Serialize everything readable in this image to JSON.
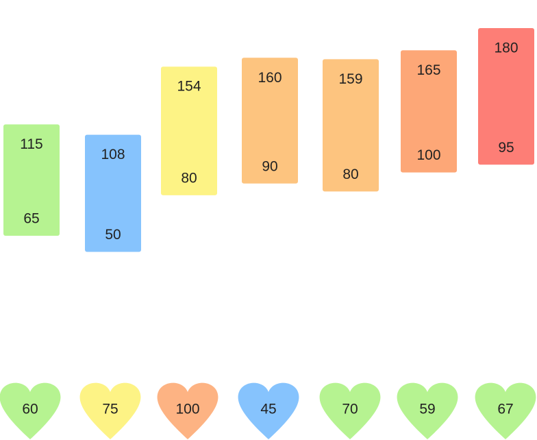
{
  "chart_data": {
    "type": "range-bar",
    "series": [
      {
        "high": 115,
        "low": 65,
        "color": "#b6f391",
        "heart_value": "60",
        "heart_color": "#b6f391"
      },
      {
        "high": 108,
        "low": 50,
        "color": "#86c3fd",
        "heart_value": "75",
        "heart_color": "#fdf385"
      },
      {
        "high": 154,
        "low": 80,
        "color": "#fdf385",
        "heart_value": "100",
        "heart_color": "#fdb383"
      },
      {
        "high": 160,
        "low": 90,
        "color": "#fdc47f",
        "heart_value": "45",
        "heart_color": "#86c3fd"
      },
      {
        "high": 159,
        "low": 80,
        "color": "#fdc47f",
        "heart_value": "70",
        "heart_color": "#b6f391"
      },
      {
        "high": 165,
        "low": 100,
        "color": "#fda777",
        "heart_value": "59",
        "heart_color": "#b6f391"
      },
      {
        "high": 180,
        "low": 95,
        "color": "#fd7e76",
        "heart_value": "67",
        "heart_color": "#b6f391"
      }
    ],
    "labels": {
      "high": [
        "115",
        "108",
        "154",
        "160",
        "159",
        "165",
        "180"
      ],
      "low": [
        "65",
        "50",
        "80",
        "90",
        "80",
        "100",
        "95"
      ],
      "hearts": [
        "60",
        "75",
        "100",
        "45",
        "70",
        "59",
        "67"
      ]
    },
    "grid": false,
    "legend": "none"
  }
}
